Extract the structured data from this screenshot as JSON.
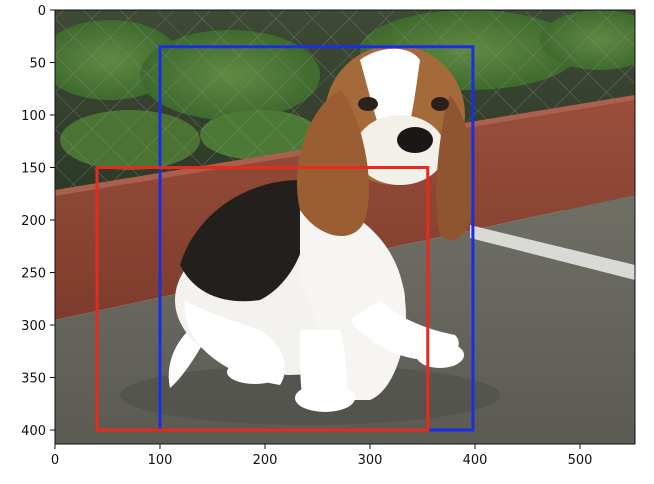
{
  "figure": {
    "x_ticks": [
      "0",
      "100",
      "200",
      "300",
      "400",
      "500"
    ],
    "y_ticks": [
      "0",
      "50",
      "100",
      "150",
      "200",
      "250",
      "300",
      "350",
      "400"
    ]
  },
  "image": {
    "subject": "beagle puppy sitting on pavement in front of a wooden border and chain-link fence"
  },
  "boxes": [
    {
      "color": "#1a2ee6",
      "x_min": 100,
      "y_min": 35,
      "x_max": 398,
      "y_max": 400
    },
    {
      "color": "#e62a1e",
      "x_min": 40,
      "y_min": 150,
      "x_max": 355,
      "y_max": 400
    }
  ],
  "colors": {
    "axis": "#111111",
    "background": "#ffffff"
  }
}
